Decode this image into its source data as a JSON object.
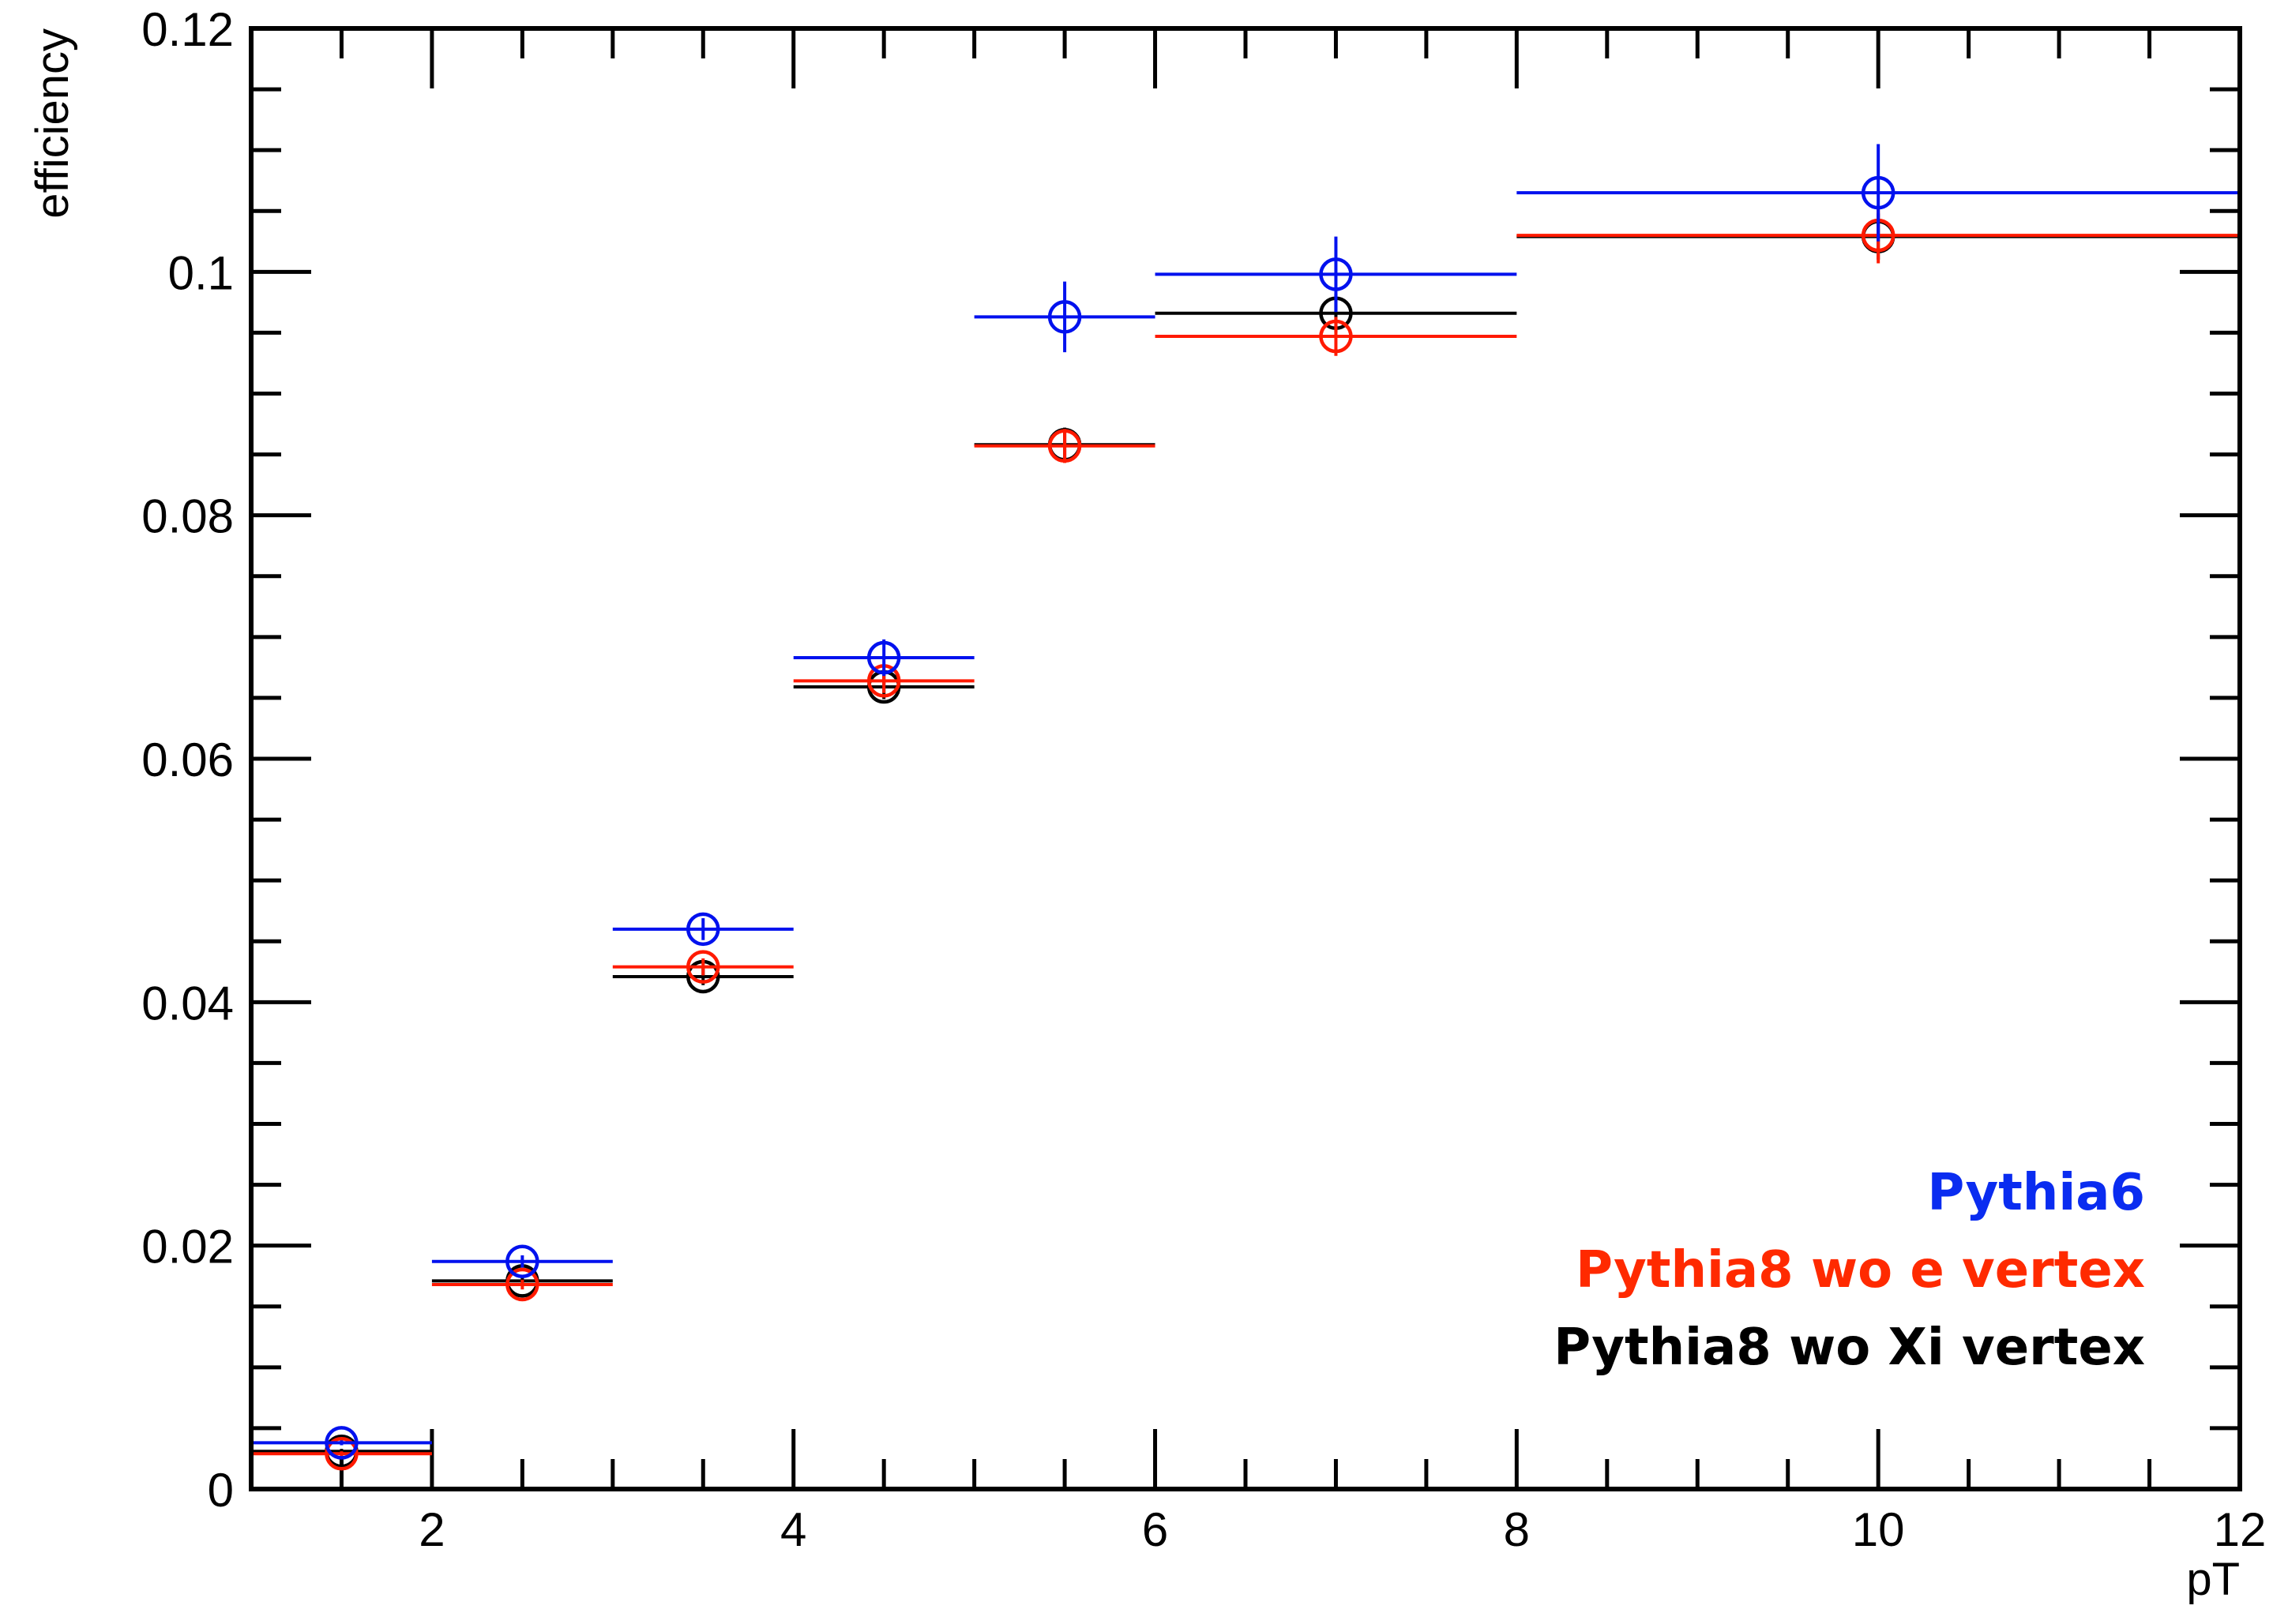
{
  "chart_data": {
    "type": "scatter",
    "title": "",
    "xlabel": "pT",
    "ylabel": "efficiency",
    "xlim": [
      1,
      12
    ],
    "ylim": [
      0,
      0.12
    ],
    "x_ticks": [
      "2",
      "4",
      "6",
      "8",
      "10",
      "12"
    ],
    "y_ticks": [
      "0",
      "0.02",
      "0.04",
      "0.06",
      "0.08",
      "0.1",
      "0.12"
    ],
    "grid": false,
    "legend_position": "bottom-right",
    "series": [
      {
        "name": "Pythia8 wo Xi vertex",
        "color": "#000000",
        "points": [
          {
            "x": 1.5,
            "xlow": 1,
            "xhigh": 2,
            "y": 0.0031,
            "err": 0.0002
          },
          {
            "x": 2.5,
            "xlow": 2,
            "xhigh": 3,
            "y": 0.0171,
            "err": 0.0004
          },
          {
            "x": 3.5,
            "xlow": 3,
            "xhigh": 4,
            "y": 0.0421,
            "err": 0.0007
          },
          {
            "x": 4.5,
            "xlow": 4,
            "xhigh": 5,
            "y": 0.0659,
            "err": 0.001
          },
          {
            "x": 5.5,
            "xlow": 5,
            "xhigh": 6,
            "y": 0.0858,
            "err": 0.0014
          },
          {
            "x": 7.0,
            "xlow": 6,
            "xhigh": 8,
            "y": 0.0966,
            "err": 0.0016
          },
          {
            "x": 10.0,
            "xlow": 8,
            "xhigh": 12,
            "y": 0.1029,
            "err": 0.0019
          }
        ]
      },
      {
        "name": "Pythia8 wo e vertex",
        "color": "#ff1a00",
        "points": [
          {
            "x": 1.5,
            "xlow": 1,
            "xhigh": 2,
            "y": 0.0029,
            "err": 0.0002
          },
          {
            "x": 2.5,
            "xlow": 2,
            "xhigh": 3,
            "y": 0.0168,
            "err": 0.0004
          },
          {
            "x": 3.5,
            "xlow": 3,
            "xhigh": 4,
            "y": 0.0429,
            "err": 0.0007
          },
          {
            "x": 4.5,
            "xlow": 4,
            "xhigh": 5,
            "y": 0.0664,
            "err": 0.001
          },
          {
            "x": 5.5,
            "xlow": 5,
            "xhigh": 6,
            "y": 0.0857,
            "err": 0.0014
          },
          {
            "x": 7.0,
            "xlow": 6,
            "xhigh": 8,
            "y": 0.0947,
            "err": 0.0016
          },
          {
            "x": 10.0,
            "xlow": 8,
            "xhigh": 12,
            "y": 0.103,
            "err": 0.0023
          }
        ]
      },
      {
        "name": "Pythia6",
        "color": "#0011ee",
        "points": [
          {
            "x": 1.5,
            "xlow": 1,
            "xhigh": 2,
            "y": 0.0038,
            "err": 0.0002
          },
          {
            "x": 2.5,
            "xlow": 2,
            "xhigh": 3,
            "y": 0.0187,
            "err": 0.0005
          },
          {
            "x": 3.5,
            "xlow": 3,
            "xhigh": 4,
            "y": 0.046,
            "err": 0.0009
          },
          {
            "x": 4.5,
            "xlow": 4,
            "xhigh": 5,
            "y": 0.0683,
            "err": 0.0015
          },
          {
            "x": 5.5,
            "xlow": 5,
            "xhigh": 6,
            "y": 0.0963,
            "err": 0.0029
          },
          {
            "x": 7.0,
            "xlow": 6,
            "xhigh": 8,
            "y": 0.0998,
            "err": 0.0031
          },
          {
            "x": 10.0,
            "xlow": 8,
            "xhigh": 12,
            "y": 0.1065,
            "err": 0.004
          }
        ]
      }
    ],
    "legend": [
      {
        "label": "Pythia6",
        "color": "#0a2cf0"
      },
      {
        "label": "Pythia8 wo e vertex",
        "color": "#ff2a00"
      },
      {
        "label": "Pythia8 wo Xi vertex",
        "color": "#000000"
      }
    ]
  }
}
